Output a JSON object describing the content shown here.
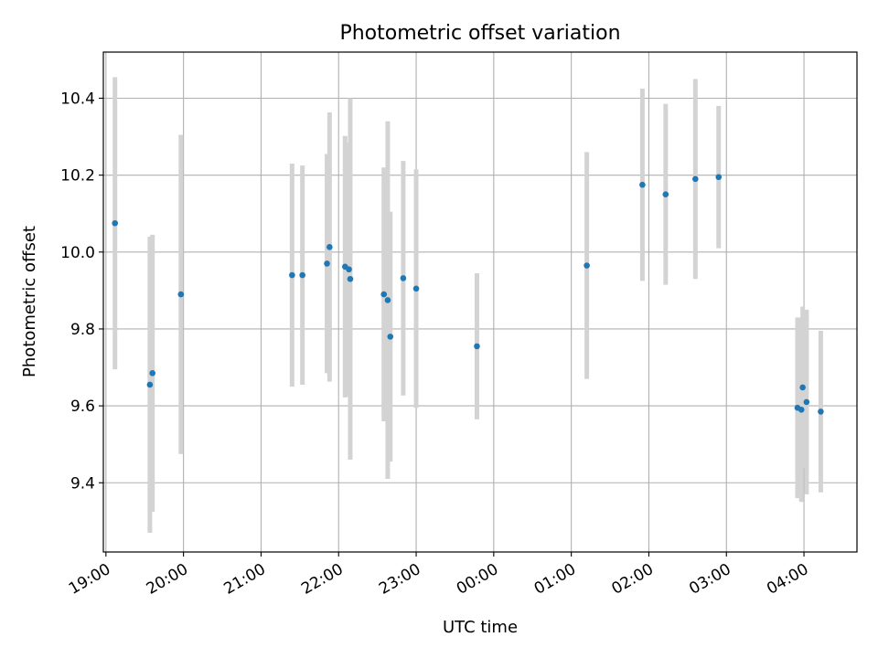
{
  "chart_data": {
    "type": "scatter",
    "title": "Photometric offset variation",
    "xlabel": "UTC time",
    "ylabel": "Photometric offset",
    "x_axis": "datetime",
    "x_tick_labels": [
      "19:00",
      "20:00",
      "21:00",
      "22:00",
      "23:00",
      "00:00",
      "01:00",
      "02:00",
      "03:00",
      "04:00"
    ],
    "x_range": [
      "18:58",
      "04:41"
    ],
    "ylim": [
      9.22,
      10.52
    ],
    "y_ticks": [
      9.4,
      9.6,
      9.8,
      10.0,
      10.2,
      10.4
    ],
    "y_tick_labels": [
      "9.4",
      "9.6",
      "9.8",
      "10.0",
      "10.2",
      "10.4"
    ],
    "grid": true,
    "marker_color": "#1f77b4",
    "errorbar_color": "#d3d3d3",
    "points": [
      {
        "x": "19:07",
        "y": 10.075,
        "yerr": 0.38
      },
      {
        "x": "19:34",
        "y": 9.655,
        "yerr": 0.385
      },
      {
        "x": "19:36",
        "y": 9.685,
        "yerr": 0.36
      },
      {
        "x": "19:58",
        "y": 9.89,
        "yerr": 0.415
      },
      {
        "x": "21:24",
        "y": 9.94,
        "yerr": 0.29
      },
      {
        "x": "21:32",
        "y": 9.94,
        "yerr": 0.285
      },
      {
        "x": "21:51",
        "y": 9.97,
        "yerr": 0.285
      },
      {
        "x": "21:53",
        "y": 10.013,
        "yerr": 0.35
      },
      {
        "x": "22:05",
        "y": 9.962,
        "yerr": 0.34
      },
      {
        "x": "22:08",
        "y": 9.955,
        "yerr": 0.33
      },
      {
        "x": "22:09",
        "y": 9.93,
        "yerr": 0.47
      },
      {
        "x": "22:35",
        "y": 9.89,
        "yerr": 0.33
      },
      {
        "x": "22:38",
        "y": 9.875,
        "yerr": 0.465
      },
      {
        "x": "22:40",
        "y": 9.78,
        "yerr": 0.325
      },
      {
        "x": "22:50",
        "y": 9.932,
        "yerr": 0.305
      },
      {
        "x": "23:00",
        "y": 9.905,
        "yerr": 0.31
      },
      {
        "x": "23:47",
        "y": 9.755,
        "yerr": 0.19
      },
      {
        "x": "01:12",
        "y": 9.965,
        "yerr": 0.295
      },
      {
        "x": "01:55",
        "y": 10.175,
        "yerr": 0.25
      },
      {
        "x": "02:13",
        "y": 10.15,
        "yerr": 0.235
      },
      {
        "x": "02:36",
        "y": 10.19,
        "yerr": 0.26
      },
      {
        "x": "02:54",
        "y": 10.195,
        "yerr": 0.185
      },
      {
        "x": "03:55",
        "y": 9.595,
        "yerr": 0.235
      },
      {
        "x": "03:58",
        "y": 9.59,
        "yerr": 0.24
      },
      {
        "x": "03:59",
        "y": 9.648,
        "yerr": 0.21
      },
      {
        "x": "04:02",
        "y": 9.61,
        "yerr": 0.24
      },
      {
        "x": "04:13",
        "y": 9.585,
        "yerr": 0.21
      }
    ]
  }
}
